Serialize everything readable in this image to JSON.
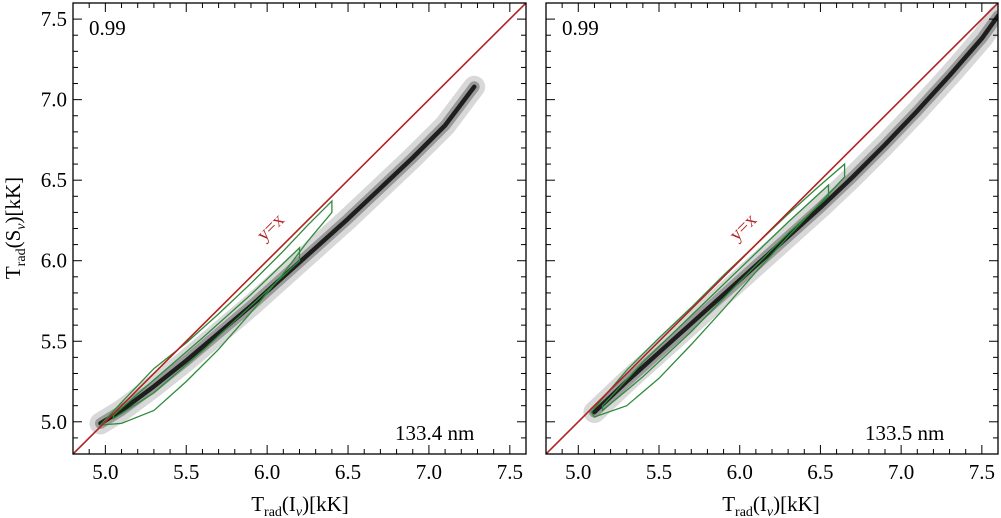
{
  "figure": {
    "ylabel": {
      "main": "T",
      "sub1": "rad",
      "mid": "(S",
      "sub2": "ν",
      "end": ")[kK]"
    },
    "identity_label": "y=x"
  },
  "chart_data": [
    {
      "type": "scatter",
      "style": "2D density histogram with contours",
      "title": "",
      "annotation_corr": "0.99",
      "annotation_wavelength": "133.4 nm",
      "identity_line_label": "y=x",
      "xlabel": {
        "main": "T",
        "sub1": "rad",
        "mid": "(I",
        "sub2": "ν",
        "end": ")[kK]"
      },
      "ylabel": "Trad(Sν)[kK]",
      "xlim": [
        4.8,
        7.6
      ],
      "ylim": [
        4.8,
        7.6
      ],
      "xticks": [
        5.0,
        5.5,
        6.0,
        6.5,
        7.0,
        7.5
      ],
      "yticks": [
        5.0,
        5.5,
        6.0,
        6.5,
        7.0,
        7.5
      ],
      "xtick_labels": [
        "5.0",
        "5.5",
        "6.0",
        "6.5",
        "7.0",
        "7.5"
      ],
      "ytick_labels": [
        "5.0",
        "5.5",
        "6.0",
        "6.5",
        "7.0",
        "7.5"
      ],
      "density_ridge": {
        "x": [
          4.97,
          5.1,
          5.3,
          5.5,
          5.7,
          5.9,
          6.1,
          6.3,
          6.5,
          6.7,
          6.9,
          7.1,
          7.28
        ],
        "y": [
          4.99,
          5.07,
          5.22,
          5.38,
          5.55,
          5.72,
          5.9,
          6.08,
          6.26,
          6.45,
          6.64,
          6.84,
          7.08
        ]
      },
      "outer_contour": {
        "x": [
          4.97,
          5.1,
          5.3,
          5.5,
          5.7,
          5.9,
          6.1,
          6.25,
          6.4,
          6.4,
          6.25,
          6.1,
          5.9,
          5.7,
          5.5,
          5.3,
          5.1,
          4.97
        ],
        "y": [
          4.98,
          5.12,
          5.33,
          5.49,
          5.67,
          5.86,
          6.06,
          6.22,
          6.37,
          6.3,
          6.12,
          5.92,
          5.68,
          5.45,
          5.25,
          5.07,
          4.99,
          4.98
        ]
      },
      "inner_contour": {
        "x": [
          5.05,
          5.3,
          5.6,
          5.9,
          6.2,
          6.2,
          5.9,
          5.6,
          5.3,
          5.05
        ],
        "y": [
          5.04,
          5.26,
          5.52,
          5.79,
          6.08,
          6.0,
          5.72,
          5.44,
          5.18,
          5.02
        ]
      }
    },
    {
      "type": "scatter",
      "style": "2D density histogram with contours",
      "title": "",
      "annotation_corr": "0.99",
      "annotation_wavelength": "133.5 nm",
      "identity_line_label": "y=x",
      "xlabel": {
        "main": "T",
        "sub1": "rad",
        "mid": "(I",
        "sub2": "ν",
        "end": ")[kK]"
      },
      "ylabel": "",
      "xlim": [
        4.8,
        7.6
      ],
      "ylim": [
        4.8,
        7.6
      ],
      "xticks": [
        5.0,
        5.5,
        6.0,
        6.5,
        7.0,
        7.5
      ],
      "yticks": [
        5.0,
        5.5,
        6.0,
        6.5,
        7.0,
        7.5
      ],
      "xtick_labels": [
        "5.0",
        "5.5",
        "6.0",
        "6.5",
        "7.0",
        "7.5"
      ],
      "ytick_labels": [],
      "density_ridge": {
        "x": [
          5.1,
          5.3,
          5.5,
          5.7,
          5.9,
          6.1,
          6.3,
          6.5,
          6.7,
          6.9,
          7.1,
          7.3,
          7.5,
          7.6
        ],
        "y": [
          5.06,
          5.25,
          5.43,
          5.61,
          5.79,
          5.97,
          6.15,
          6.33,
          6.52,
          6.72,
          6.93,
          7.15,
          7.38,
          7.52
        ]
      },
      "outer_contour": {
        "x": [
          5.08,
          5.3,
          5.5,
          5.7,
          5.9,
          6.1,
          6.3,
          6.5,
          6.65,
          6.65,
          6.5,
          6.3,
          6.1,
          5.9,
          5.7,
          5.5,
          5.3,
          5.1,
          5.08
        ],
        "y": [
          5.06,
          5.32,
          5.52,
          5.71,
          5.91,
          6.1,
          6.29,
          6.47,
          6.6,
          6.52,
          6.36,
          6.15,
          5.93,
          5.7,
          5.48,
          5.27,
          5.1,
          5.03,
          5.06
        ]
      },
      "inner_contour": {
        "x": [
          5.15,
          5.4,
          5.7,
          6.0,
          6.3,
          6.55,
          6.55,
          6.3,
          6.0,
          5.7,
          5.4,
          5.15
        ],
        "y": [
          5.1,
          5.37,
          5.66,
          5.95,
          6.24,
          6.47,
          6.4,
          6.17,
          5.87,
          5.56,
          5.28,
          5.07
        ]
      }
    }
  ]
}
